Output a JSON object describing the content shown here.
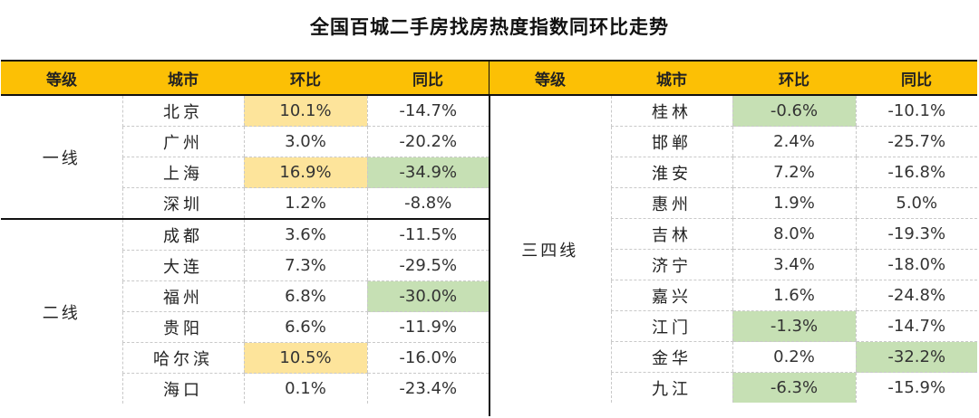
{
  "title": "全国百城二手房找房热度指数同环比走势",
  "headers": [
    "等级",
    "城市",
    "环比",
    "同比"
  ],
  "left": {
    "groups": [
      {
        "tier": "一线",
        "rows": [
          {
            "city": "北京",
            "mom": "10.1%",
            "yoy": "-14.7%",
            "mom_hl": "yellow",
            "yoy_hl": ""
          },
          {
            "city": "广州",
            "mom": "3.0%",
            "yoy": "-20.2%",
            "mom_hl": "",
            "yoy_hl": ""
          },
          {
            "city": "上海",
            "mom": "16.9%",
            "yoy": "-34.9%",
            "mom_hl": "yellow",
            "yoy_hl": "green"
          },
          {
            "city": "深圳",
            "mom": "1.2%",
            "yoy": "-8.8%",
            "mom_hl": "",
            "yoy_hl": ""
          }
        ]
      },
      {
        "tier": "二线",
        "rows": [
          {
            "city": "成都",
            "mom": "3.6%",
            "yoy": "-11.5%",
            "mom_hl": "",
            "yoy_hl": ""
          },
          {
            "city": "大连",
            "mom": "7.3%",
            "yoy": "-29.5%",
            "mom_hl": "",
            "yoy_hl": ""
          },
          {
            "city": "福州",
            "mom": "6.8%",
            "yoy": "-30.0%",
            "mom_hl": "",
            "yoy_hl": "green"
          },
          {
            "city": "贵阳",
            "mom": "6.6%",
            "yoy": "-11.9%",
            "mom_hl": "",
            "yoy_hl": ""
          },
          {
            "city": "哈尔滨",
            "mom": "10.5%",
            "yoy": "-16.0%",
            "mom_hl": "yellow",
            "yoy_hl": ""
          },
          {
            "city": "海口",
            "mom": "0.1%",
            "yoy": "-23.4%",
            "mom_hl": "",
            "yoy_hl": ""
          }
        ]
      }
    ]
  },
  "right": {
    "groups": [
      {
        "tier": "三四线",
        "rows": [
          {
            "city": "桂林",
            "mom": "-0.6%",
            "yoy": "-10.1%",
            "mom_hl": "green",
            "yoy_hl": ""
          },
          {
            "city": "邯郸",
            "mom": "2.4%",
            "yoy": "-25.7%",
            "mom_hl": "",
            "yoy_hl": ""
          },
          {
            "city": "淮安",
            "mom": "7.2%",
            "yoy": "-16.8%",
            "mom_hl": "",
            "yoy_hl": ""
          },
          {
            "city": "惠州",
            "mom": "1.9%",
            "yoy": "5.0%",
            "mom_hl": "",
            "yoy_hl": ""
          },
          {
            "city": "吉林",
            "mom": "8.0%",
            "yoy": "-19.3%",
            "mom_hl": "",
            "yoy_hl": ""
          },
          {
            "city": "济宁",
            "mom": "3.4%",
            "yoy": "-18.0%",
            "mom_hl": "",
            "yoy_hl": ""
          },
          {
            "city": "嘉兴",
            "mom": "1.6%",
            "yoy": "-24.8%",
            "mom_hl": "",
            "yoy_hl": ""
          },
          {
            "city": "江门",
            "mom": "-1.3%",
            "yoy": "-14.7%",
            "mom_hl": "green",
            "yoy_hl": ""
          },
          {
            "city": "金华",
            "mom": "0.2%",
            "yoy": "-32.2%",
            "mom_hl": "",
            "yoy_hl": "green"
          },
          {
            "city": "九江",
            "mom": "-6.3%",
            "yoy": "-15.9%",
            "mom_hl": "green",
            "yoy_hl": ""
          }
        ]
      }
    ]
  },
  "colors": {
    "header_bg": "#fcc005",
    "highlight_yellow": "#fde49b",
    "highlight_green": "#c6e0b4",
    "rule": "#111111"
  }
}
